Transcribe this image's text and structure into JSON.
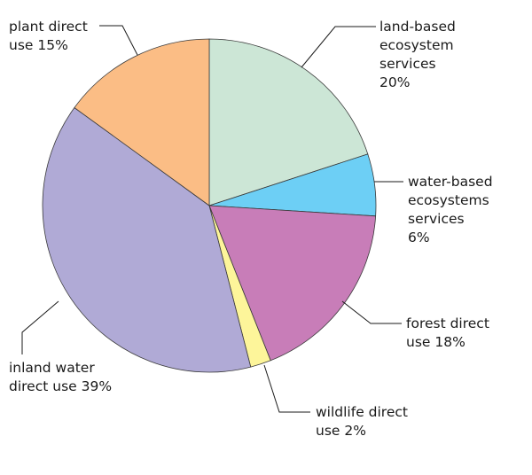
{
  "chart_data": {
    "type": "pie",
    "title": "",
    "slices": [
      {
        "lines": [
          "land-based",
          "ecosystem",
          "services",
          "20%"
        ],
        "value": 20,
        "color": "#cce6d6"
      },
      {
        "lines": [
          "water-based",
          "ecosystems",
          "services",
          "6%"
        ],
        "value": 6,
        "color": "#6dcff5"
      },
      {
        "lines": [
          "forest direct",
          "use  18%"
        ],
        "value": 18,
        "color": "#c87db8"
      },
      {
        "lines": [
          "wildlife direct",
          "use  2%"
        ],
        "value": 2,
        "color": "#fdf59a"
      },
      {
        "lines": [
          "inland water",
          "direct use  39%"
        ],
        "value": 39,
        "color": "#b0aad6"
      },
      {
        "lines": [
          "plant direct",
          "use  15%"
        ],
        "value": 15,
        "color": "#fbbd85"
      }
    ]
  }
}
